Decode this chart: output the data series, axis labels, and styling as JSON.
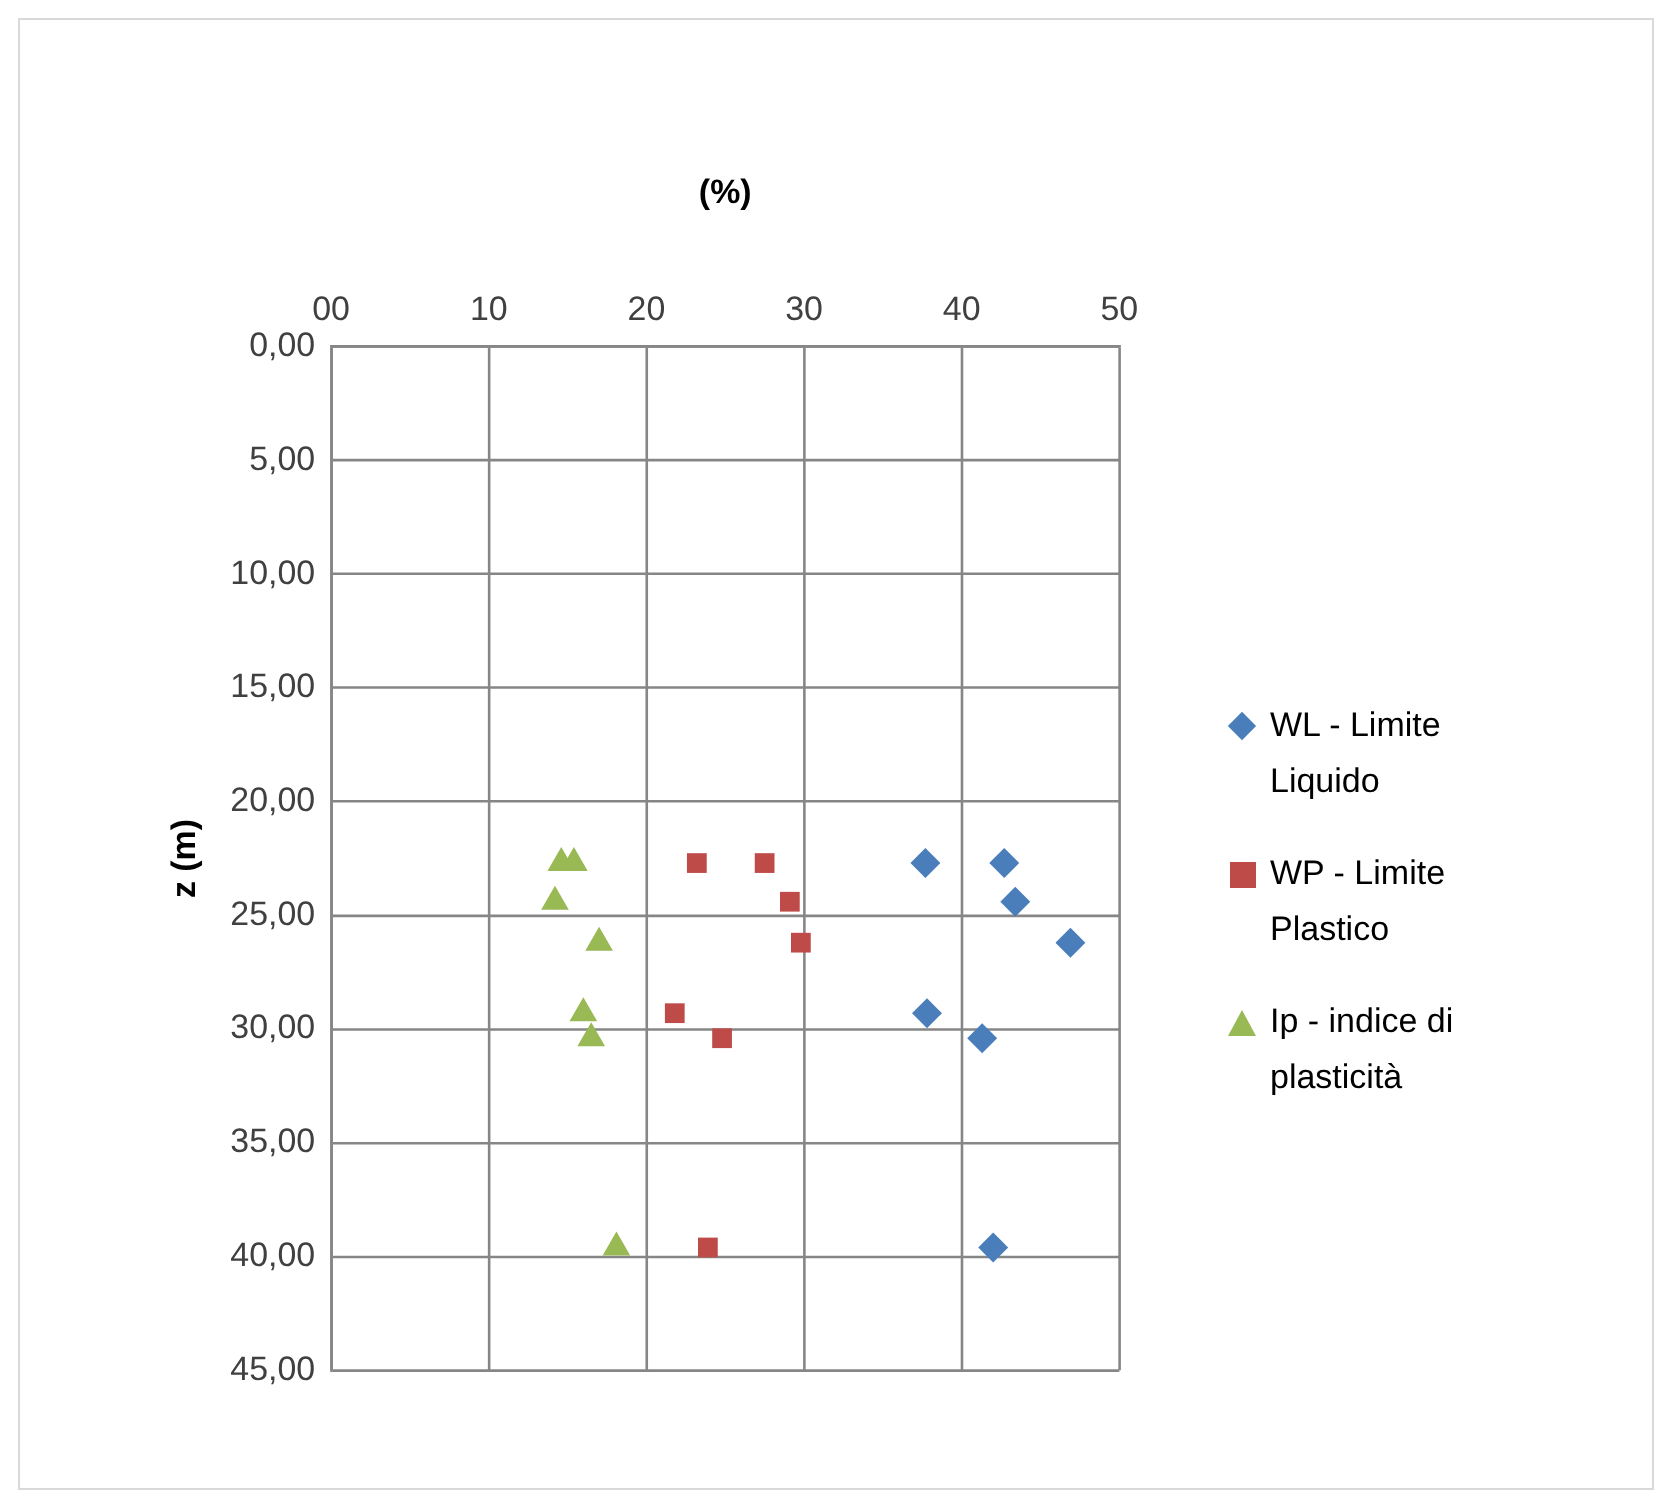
{
  "chart_data": {
    "type": "scatter",
    "xlabel": "(%)",
    "ylabel": "z (m)",
    "xlim": [
      0,
      50
    ],
    "xticks": [
      {
        "value": 0,
        "label": "00"
      },
      10,
      20,
      30,
      40,
      50
    ],
    "ylim": [
      45,
      0
    ],
    "yticks": [
      {
        "value": 0,
        "label": "0,00"
      },
      {
        "value": 5,
        "label": "5,00"
      },
      {
        "value": 10,
        "label": "10,00"
      },
      {
        "value": 15,
        "label": "15,00"
      },
      {
        "value": 20,
        "label": "20,00"
      },
      {
        "value": 25,
        "label": "25,00"
      },
      {
        "value": 30,
        "label": "30,00"
      },
      {
        "value": 35,
        "label": "35,00"
      },
      {
        "value": 40,
        "label": "40,00"
      },
      {
        "value": 45,
        "label": "45,00"
      }
    ],
    "grid": true,
    "legend": "right",
    "series": [
      {
        "name": "WL - Limite Liquido",
        "color": "#4a7ebb",
        "marker": "diamond",
        "x": [
          37.7,
          42.7,
          43.4,
          46.9,
          37.8,
          41.3,
          42.0
        ],
        "values": [
          22.7,
          22.7,
          24.4,
          26.2,
          29.3,
          30.4,
          39.6
        ]
      },
      {
        "name": "WP - Limite Plastico",
        "color": "#be4b48",
        "marker": "square",
        "x": [
          23.2,
          27.5,
          29.1,
          29.8,
          21.8,
          24.8,
          23.9
        ],
        "values": [
          22.7,
          22.7,
          24.4,
          26.2,
          29.3,
          30.4,
          39.6
        ]
      },
      {
        "name": "Ip - indice di plasticità",
        "color": "#98b954",
        "marker": "triangle",
        "x": [
          14.6,
          15.4,
          14.2,
          17.0,
          16.0,
          16.5,
          18.1
        ],
        "values": [
          22.7,
          22.7,
          24.4,
          26.2,
          29.3,
          30.4,
          39.6
        ]
      }
    ]
  }
}
